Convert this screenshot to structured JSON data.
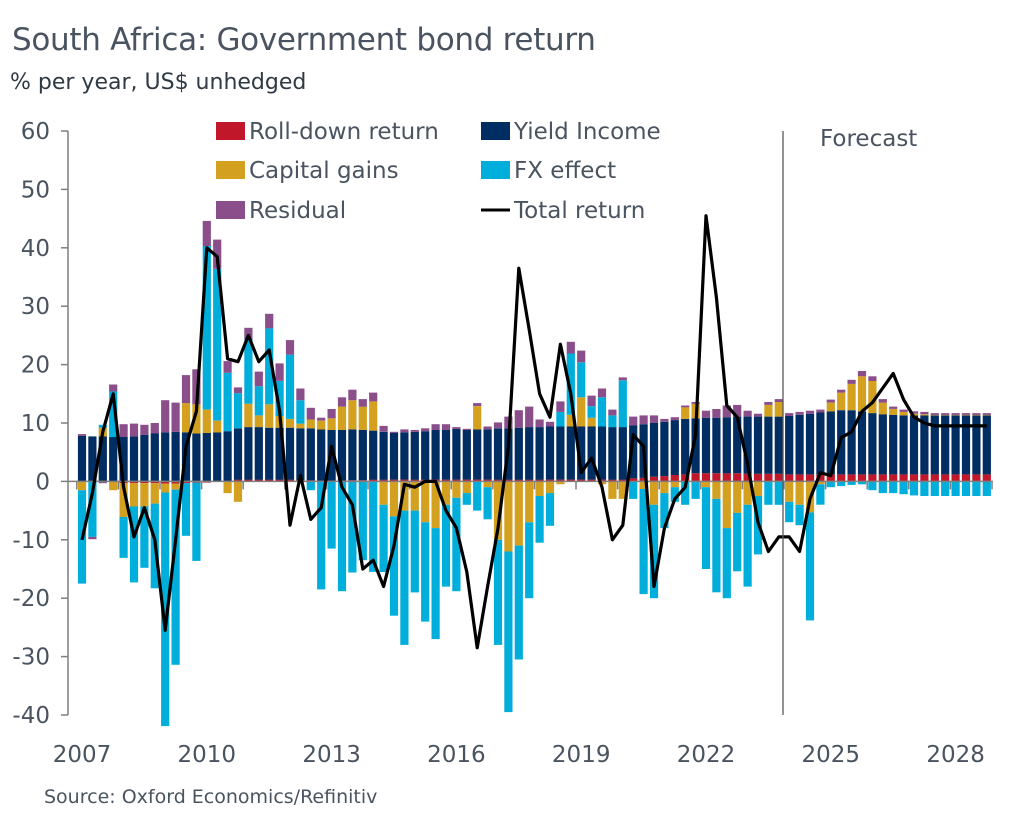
{
  "header": {
    "title": "South Africa: Government bond return",
    "subtitle": "% per year, US$ unhedged"
  },
  "footer": {
    "source": "Source: Oxford Economics/Refinitiv"
  },
  "chart_data": {
    "type": "bar",
    "stacked": true,
    "title": "South Africa: Government bond return",
    "subtitle": "% per year, US$ unhedged",
    "xlabel": "",
    "ylabel": "% per year, US$ unhedged",
    "ylim": [
      -40,
      60
    ],
    "yticks": [
      60,
      50,
      40,
      30,
      20,
      10,
      0,
      -10,
      -20,
      -30,
      -40
    ],
    "xtick_labels": [
      "2007",
      "2010",
      "2013",
      "2016",
      "2019",
      "2022",
      "2025",
      "2028"
    ],
    "frequency": "quarterly",
    "start": "2007Q1",
    "end": "2028Q4",
    "grid": false,
    "legend_position": "top",
    "annotation": {
      "label": "Forecast",
      "from": "2024Q1"
    },
    "colors": {
      "rolldown": "#c0182a",
      "yield": "#002d62",
      "capital": "#d4a020",
      "fx": "#00aedb",
      "residual": "#8a4f8a",
      "total": "#000000",
      "axis": "#7f7f7f",
      "text": "#4a5460"
    },
    "legend": [
      {
        "key": "rolldown",
        "label": "Roll-down return",
        "kind": "box"
      },
      {
        "key": "yield",
        "label": "Yield Income",
        "kind": "box"
      },
      {
        "key": "capital",
        "label": "Capital gains",
        "kind": "box"
      },
      {
        "key": "fx",
        "label": "FX effect",
        "kind": "box"
      },
      {
        "key": "residual",
        "label": "Residual",
        "kind": "box"
      },
      {
        "key": "total",
        "label": "Total return",
        "kind": "line"
      }
    ],
    "series": [
      {
        "key": "rolldown",
        "name": "Roll-down return",
        "values": [
          0,
          0,
          0,
          0,
          -0.3,
          -0.3,
          -0.3,
          -0.3,
          -0.4,
          -0.4,
          -0.3,
          -0.2,
          -0.2,
          0,
          0,
          0.3,
          0.3,
          0.3,
          0.3,
          0.3,
          0.3,
          0.2,
          0.2,
          0.1,
          0.1,
          0.1,
          0.2,
          0.2,
          0.3,
          0.3,
          0.3,
          0.3,
          0.3,
          0.3,
          0.3,
          0.3,
          0.3,
          0.3,
          0.3,
          0.3,
          0.3,
          0.3,
          0.3,
          0.3,
          0.3,
          0.3,
          0.3,
          0.3,
          0.3,
          0.3,
          0.3,
          0.3,
          0.3,
          0.5,
          0.6,
          0.8,
          0.9,
          1.1,
          1.2,
          1.4,
          1.4,
          1.4,
          1.4,
          1.4,
          1.3,
          1.3,
          1.3,
          1.3,
          1.2,
          1.2,
          1.2,
          1.2,
          1.2,
          1.2,
          1.2,
          1.2,
          1.2,
          1.2,
          1.2,
          1.2,
          1.2,
          1.2,
          1.2,
          1.2,
          1.2,
          1.2,
          1.2,
          1.2
        ]
      },
      {
        "key": "yield",
        "name": "Yield Income",
        "values": [
          7.8,
          7.7,
          7.7,
          7.6,
          7.6,
          7.7,
          8.0,
          8.2,
          8.4,
          8.5,
          8.4,
          8.2,
          8.3,
          8.4,
          8.6,
          8.8,
          9.0,
          9.0,
          8.9,
          8.9,
          8.9,
          8.9,
          8.9,
          8.8,
          8.7,
          8.7,
          8.7,
          8.6,
          8.4,
          8.2,
          8.0,
          8.1,
          8.2,
          8.3,
          8.5,
          8.5,
          8.7,
          8.5,
          8.6,
          8.6,
          8.8,
          8.8,
          8.9,
          9.0,
          9.0,
          9.1,
          9.1,
          9.1,
          9.1,
          9.1,
          9.1,
          9.0,
          9.0,
          9.1,
          9.2,
          9.2,
          9.3,
          9.4,
          9.5,
          9.4,
          9.5,
          9.5,
          9.6,
          9.7,
          9.8,
          9.8,
          9.8,
          9.8,
          10.0,
          10.2,
          10.4,
          10.6,
          10.8,
          11.0,
          11.0,
          10.8,
          10.5,
          10.3,
          10.2,
          10.1,
          10.1,
          10.1,
          10.1,
          10.1,
          10.1,
          10.1,
          10.1,
          10.1
        ]
      },
      {
        "key": "capital",
        "name": "Capital gains",
        "values": [
          -1.5,
          0,
          1.5,
          -1.5,
          -5.8,
          -4,
          -4,
          -3.5,
          -1.5,
          -1,
          5,
          5,
          4,
          2,
          -2,
          -3.5,
          4,
          2,
          4,
          2,
          1.5,
          0.8,
          1.5,
          1.5,
          2,
          4,
          5,
          4,
          5,
          -4,
          -6,
          -5,
          -5,
          -7,
          -8,
          -4,
          -2.8,
          -2,
          4,
          -1,
          -10,
          -12,
          -11,
          -7,
          -2.5,
          -2,
          -0.5,
          2,
          5,
          1.5,
          -0.5,
          -3,
          -3,
          0,
          -1.3,
          -4,
          -2,
          -1,
          2,
          2.5,
          -1,
          -3,
          -8,
          -5.4,
          -4,
          -2.5,
          2,
          2.5,
          -3.5,
          -4,
          -5.3,
          -0.5,
          1.5,
          3,
          4.5,
          6,
          5.5,
          2,
          1,
          0.6,
          0.3,
          0.2,
          0.1,
          0.1,
          0.1,
          0.1,
          0.1,
          0.1
        ]
      },
      {
        "key": "fx",
        "name": "FX effect",
        "values": [
          -16,
          -9.5,
          0.5,
          7.8,
          -7,
          -13,
          -10.5,
          -14.5,
          -40,
          -30,
          -9,
          -13.4,
          28,
          26,
          10,
          6,
          11,
          5,
          13,
          6,
          11,
          4,
          -1.5,
          -18.5,
          -11.5,
          -18.8,
          -15.6,
          -13.5,
          -15.5,
          -11.5,
          -17,
          -23,
          -14,
          -17,
          -19,
          -14,
          -16,
          -2,
          -5,
          -5.5,
          -18,
          -27.5,
          -19.5,
          -13,
          -8,
          -5.6,
          2.5,
          10.5,
          6,
          2,
          5,
          2,
          8,
          -3,
          -18,
          -16,
          -6,
          -2.5,
          -4,
          -3,
          -14,
          -16,
          -12,
          -10,
          -14,
          -10,
          -4,
          -4,
          -3.5,
          -3.5,
          -18.5,
          -3.5,
          -1,
          -0.8,
          -0.6,
          -0.5,
          -1.5,
          -2,
          -2,
          -2.2,
          -2.4,
          -2.5,
          -2.5,
          -2.5,
          -2.5,
          -2.5,
          -2.5,
          -2.5
        ]
      },
      {
        "key": "residual",
        "name": "Residual",
        "values": [
          0.3,
          -0.4,
          -0.3,
          1.2,
          2.2,
          2.2,
          1.7,
          1.8,
          5.5,
          5,
          4.8,
          6,
          4.3,
          5,
          2,
          1,
          2,
          2.5,
          2.5,
          3,
          2.5,
          2,
          2,
          0.5,
          1.6,
          1.6,
          1.8,
          1.3,
          1.5,
          1,
          0.2,
          0.5,
          0.3,
          0.5,
          1,
          1,
          0.3,
          0.2,
          0.5,
          0.5,
          1,
          2,
          3,
          3.5,
          1.3,
          0.8,
          1.8,
          2,
          2,
          1.8,
          1.5,
          1,
          0.5,
          1.5,
          1.5,
          1.3,
          0.5,
          0.5,
          0.3,
          0.3,
          1.2,
          1.5,
          2,
          2,
          1,
          0.5,
          0.5,
          0.5,
          0.5,
          0.5,
          0.5,
          0.5,
          0.5,
          0.5,
          0.7,
          0.9,
          0.8,
          0.6,
          0.4,
          0.4,
          0.4,
          0.4,
          0.3,
          0.3,
          0.3,
          0.3,
          0.3,
          0.3
        ]
      },
      {
        "key": "total",
        "name": "Total return",
        "values": [
          -10,
          -2,
          8.5,
          15,
          -1,
          -9.5,
          -4.5,
          -10,
          -25.5,
          -10,
          6,
          12,
          40,
          38.5,
          21,
          20.5,
          25,
          20.5,
          22.5,
          12,
          -7.5,
          1,
          -6.5,
          -4.5,
          6,
          -1,
          -4,
          -15,
          -13.5,
          -18,
          -11,
          -0.5,
          -1,
          0,
          0,
          -5,
          -8,
          -15.5,
          -28.5,
          -18,
          -8,
          6,
          36.5,
          26,
          15,
          11,
          23.5,
          15,
          1.5,
          4,
          -1,
          -10,
          -7.5,
          8,
          6,
          -18,
          -8,
          -3,
          -1,
          8,
          45.5,
          31.5,
          13,
          11,
          3,
          -7,
          -12,
          -9.5,
          -9.5,
          -12,
          -3,
          1.5,
          1,
          7.5,
          8.5,
          12,
          13.5,
          16,
          18.5,
          14,
          11,
          10,
          9.5,
          9.5,
          9.5,
          9.5,
          9.5,
          9.5
        ]
      }
    ]
  }
}
